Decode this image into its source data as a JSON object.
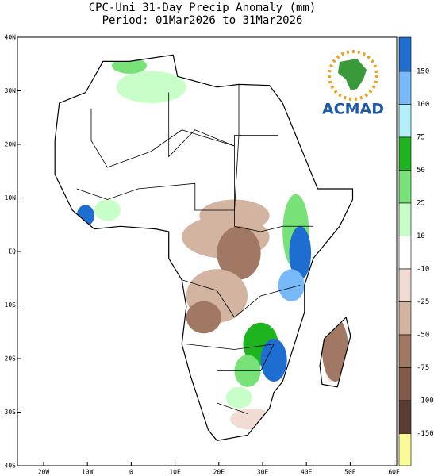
{
  "title": {
    "line1": "CPC-Uni 31-Day Precip Anomaly (mm)",
    "line2": "Period: 01Mar2026 to 31Mar2026"
  },
  "map": {
    "lat_labels": [
      "40N",
      "30N",
      "20N",
      "10N",
      "EQ",
      "10S",
      "20S",
      "30S",
      "40S"
    ],
    "lon_labels": [
      "20W",
      "10W",
      "0",
      "10E",
      "20E",
      "30E",
      "40E",
      "50E",
      "60E"
    ]
  },
  "colorbar": {
    "labels": [
      "150",
      "100",
      "75",
      "50",
      "25",
      "10",
      "-10",
      "-25",
      "-50",
      "-75",
      "-100",
      "-150"
    ]
  },
  "logo": {
    "text": "ACMAD"
  }
}
